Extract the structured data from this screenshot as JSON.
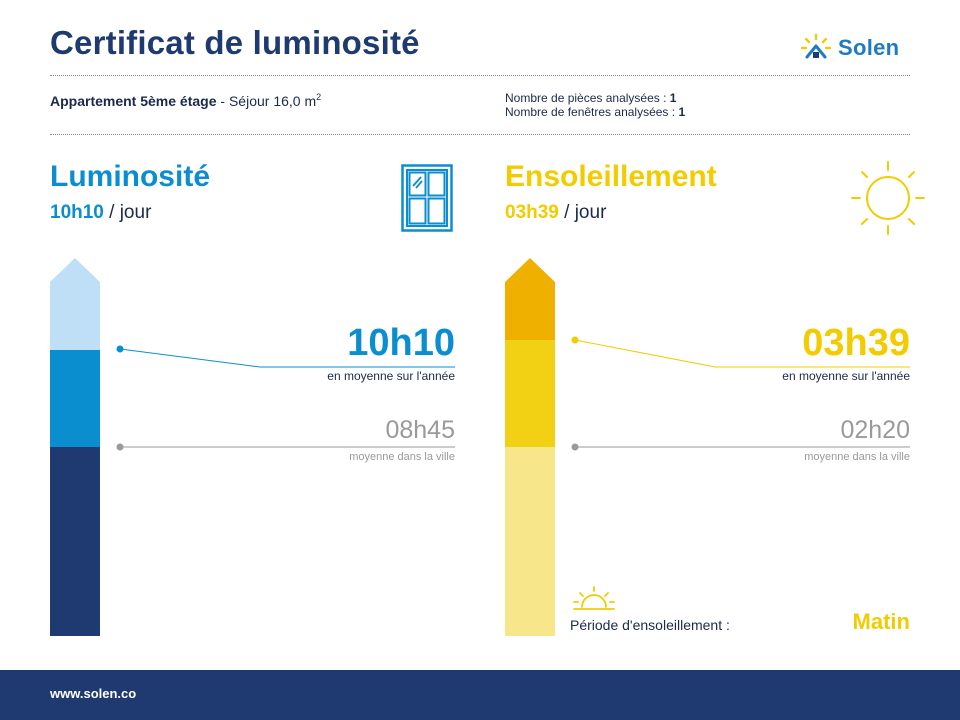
{
  "header": {
    "title": "Certificat de luminosité",
    "logo_text": "Solen"
  },
  "apartment": {
    "name": "Appartement 5ème étage",
    "room_prefix": " - Séjour 16,0 m",
    "area_exponent": "2"
  },
  "counts": {
    "rooms_label": "Nombre de pièces analysées : ",
    "rooms_value": "1",
    "windows_label": "Nombre de fenêtres analysées : ",
    "windows_value": "1"
  },
  "luminosite": {
    "title": "Luminosité",
    "value": "10h10",
    "unit": " / jour",
    "big_value": "10h10",
    "big_caption": "en moyenne sur l'année",
    "city_value": "08h45",
    "city_caption": "moyenne dans la ville",
    "colors": {
      "light": "#bedff6",
      "mid": "#0a8ecf",
      "dark": "#1e3a70",
      "accent": "#0a8ecf"
    }
  },
  "ensoleillement": {
    "title": "Ensoleillement",
    "value": "03h39",
    "unit": " / jour",
    "big_value": "03h39",
    "big_caption": "en moyenne sur l'année",
    "city_value": "02h20",
    "city_caption": "moyenne dans la ville",
    "period_label": "Période d'ensoleillement :",
    "period_value": "Matin",
    "colors": {
      "top": "#f0b000",
      "mid": "#f2d014",
      "light": "#f7e78a",
      "accent": "#f2cc00"
    }
  },
  "icons": {
    "logo": "sun-house-icon",
    "window": "window-icon",
    "sun": "sun-icon",
    "sunrise": "sunrise-icon"
  },
  "footer": {
    "url": "www.solen.co"
  }
}
